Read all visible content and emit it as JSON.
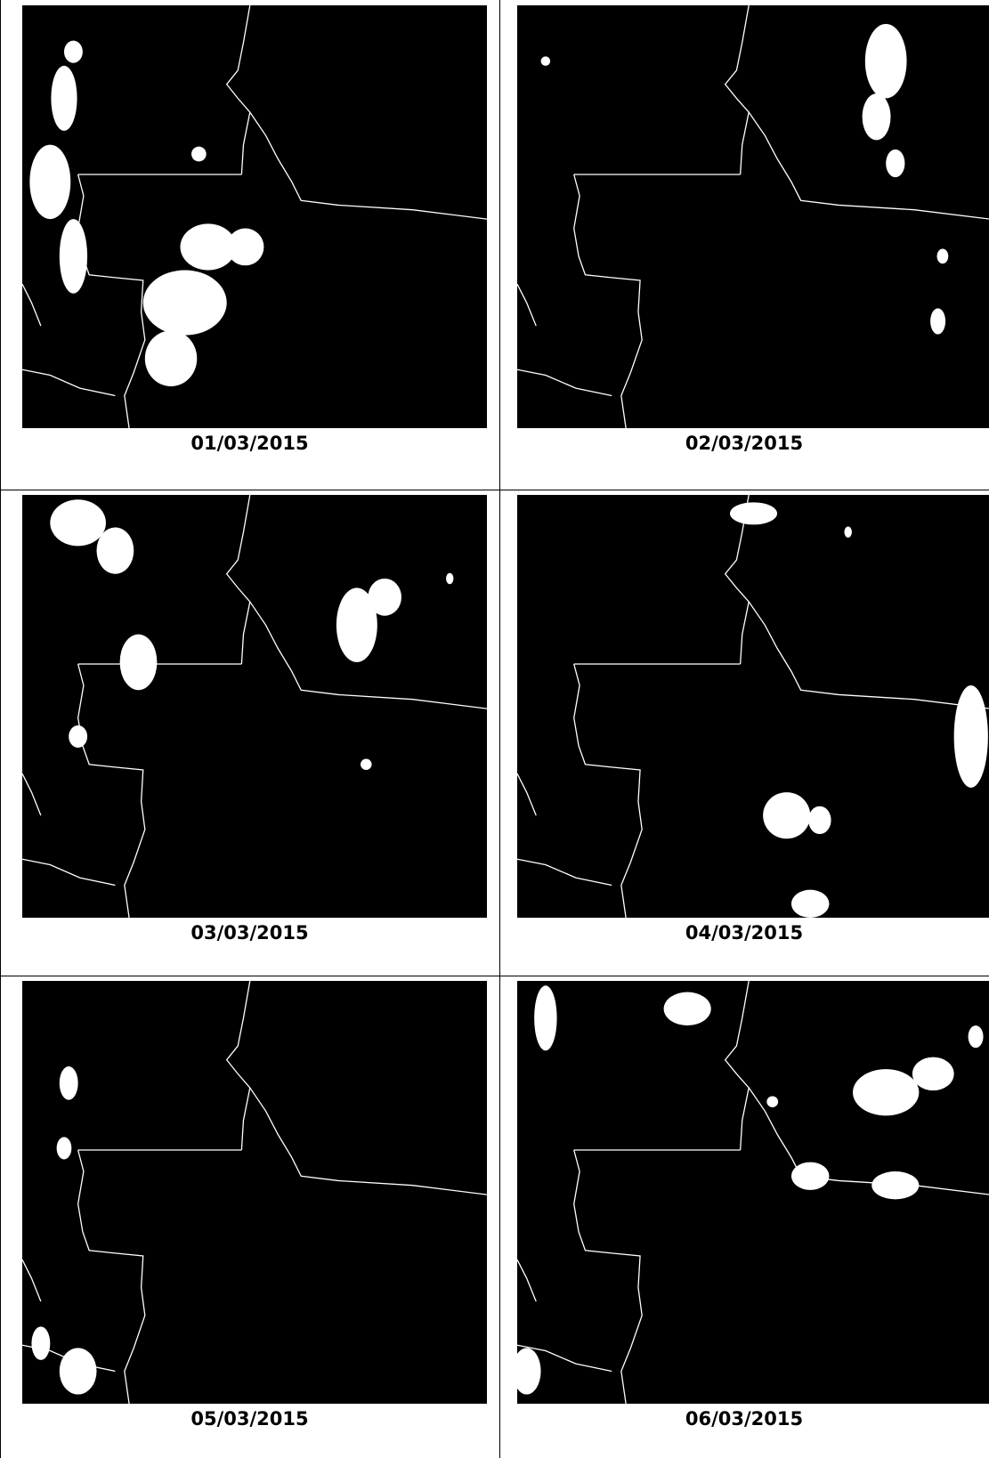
{
  "panels": [
    {
      "caption": "01/03/2015"
    },
    {
      "caption": "02/03/2015"
    },
    {
      "caption": "03/03/2015"
    },
    {
      "caption": "04/03/2015"
    },
    {
      "caption": "05/03/2015"
    },
    {
      "caption": "06/03/2015"
    }
  ]
}
